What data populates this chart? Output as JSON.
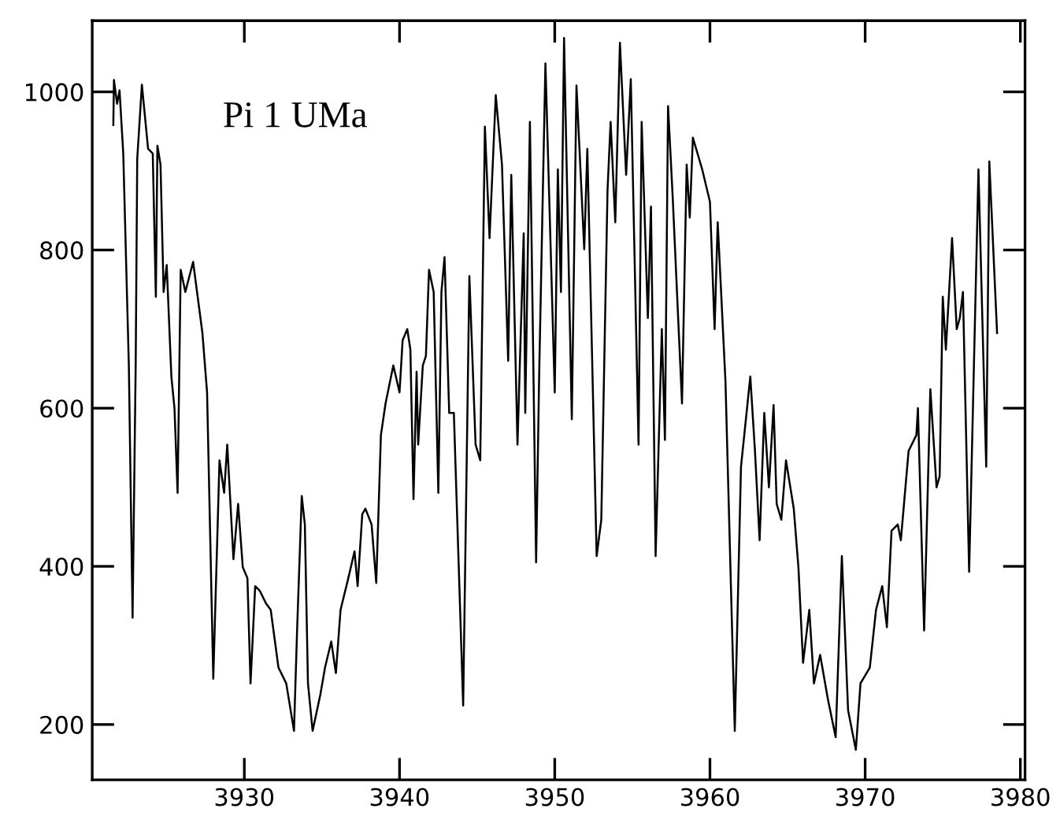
{
  "chart_data": {
    "type": "line",
    "annotations": [
      "Pi 1 UMa"
    ],
    "xlim": [
      3920.2,
      3980.3
    ],
    "ylim": [
      130,
      1090
    ],
    "xticks": [
      3930,
      3940,
      3950,
      3960,
      3970,
      3980
    ],
    "yticks": [
      200,
      400,
      600,
      800,
      1000
    ],
    "grid": false,
    "marker": "none",
    "line_style": "solid",
    "series": [
      {
        "color": "#000000",
        "x": [
          3921.56,
          3921.6,
          3921.8,
          3921.96,
          3922.2,
          3922.56,
          3922.8,
          3923.0,
          3923.1,
          3923.4,
          3923.8,
          3924.1,
          3924.3,
          3924.4,
          3924.6,
          3924.8,
          3925.0,
          3925.3,
          3925.5,
          3925.7,
          3925.9,
          3926.2,
          3926.7,
          3927.3,
          3927.6,
          3928.0,
          3928.4,
          3928.7,
          3928.9,
          3929.3,
          3929.6,
          3929.9,
          3930.2,
          3930.4,
          3930.7,
          3931.0,
          3931.4,
          3931.7,
          3932.2,
          3932.7,
          3933.2,
          3933.4,
          3933.7,
          3933.9,
          3934.1,
          3934.4,
          3934.9,
          3935.2,
          3935.6,
          3935.9,
          3936.2,
          3936.7,
          3937.1,
          3937.3,
          3937.6,
          3937.8,
          3938.2,
          3938.5,
          3938.8,
          3939.1,
          3939.6,
          3940.0,
          3940.2,
          3940.5,
          3940.7,
          3940.9,
          3941.1,
          3941.2,
          3941.5,
          3941.7,
          3941.9,
          3942.2,
          3942.5,
          3942.7,
          3942.9,
          3943.2,
          3943.5,
          3944.1,
          3944.5,
          3944.9,
          3945.2,
          3945.5,
          3945.8,
          3946.2,
          3946.6,
          3947.0,
          3947.2,
          3947.6,
          3948.0,
          3948.1,
          3948.4,
          3948.8,
          3949.0,
          3949.4,
          3950.0,
          3950.2,
          3950.4,
          3950.6,
          3951.1,
          3951.4,
          3951.9,
          3952.1,
          3952.7,
          3953.0,
          3953.4,
          3953.6,
          3953.9,
          3954.2,
          3954.6,
          3954.9,
          3955.4,
          3955.6,
          3956.0,
          3956.2,
          3956.5,
          3956.9,
          3957.1,
          3957.3,
          3957.6,
          3958.2,
          3958.5,
          3958.7,
          3958.9,
          3959.5,
          3960.0,
          3960.3,
          3960.5,
          3961.0,
          3961.6,
          3962.0,
          3962.6,
          3962.9,
          3963.2,
          3963.5,
          3963.8,
          3964.1,
          3964.3,
          3964.6,
          3964.9,
          3965.4,
          3965.7,
          3966.0,
          3966.4,
          3966.7,
          3967.1,
          3967.6,
          3968.1,
          3968.5,
          3968.9,
          3969.4,
          3969.7,
          3970.3,
          3970.7,
          3971.1,
          3971.4,
          3971.7,
          3972.1,
          3972.3,
          3972.8,
          3973.3,
          3973.4,
          3973.8,
          3974.2,
          3974.6,
          3974.8,
          3975.0,
          3975.2,
          3975.6,
          3975.9,
          3976.1,
          3976.3,
          3976.7,
          3977.3,
          3977.8,
          3978.0,
          3978.5
        ],
        "values": [
          958,
          1015,
          985,
          1002,
          922,
          654,
          335,
          654,
          915,
          1009,
          928,
          922,
          741,
          932,
          908,
          747,
          781,
          640,
          600,
          493,
          775,
          747,
          785,
          695,
          620,
          258,
          534,
          493,
          554,
          409,
          479,
          399,
          385,
          252,
          375,
          369,
          353,
          345,
          272,
          252,
          192,
          319,
          489,
          453,
          252,
          192,
          238,
          272,
          305,
          265,
          345,
          385,
          419,
          375,
          466,
          473,
          453,
          379,
          566,
          606,
          654,
          620,
          686,
          700,
          674,
          485,
          646,
          554,
          654,
          666,
          775,
          747,
          493,
          747,
          791,
          594,
          594,
          224,
          767,
          554,
          534,
          956,
          815,
          996,
          908,
          660,
          895,
          554,
          821,
          594,
          962,
          405,
          646,
          1036,
          620,
          902,
          747,
          1068,
          586,
          1008,
          801,
          928,
          413,
          459,
          875,
          962,
          835,
          1062,
          895,
          1016,
          554,
          962,
          714,
          855,
          413,
          700,
          560,
          982,
          867,
          606,
          908,
          841,
          942,
          902,
          861,
          700,
          835,
          634,
          192,
          526,
          640,
          546,
          433,
          594,
          500,
          604,
          479,
          459,
          534,
          473,
          399,
          278,
          345,
          252,
          288,
          232,
          184,
          413,
          218,
          168,
          252,
          272,
          345,
          375,
          323,
          445,
          453,
          433,
          546,
          566,
          600,
          319,
          624,
          500,
          514,
          741,
          674,
          815,
          700,
          714,
          747,
          393,
          902,
          526,
          912,
          695
        ]
      }
    ]
  }
}
